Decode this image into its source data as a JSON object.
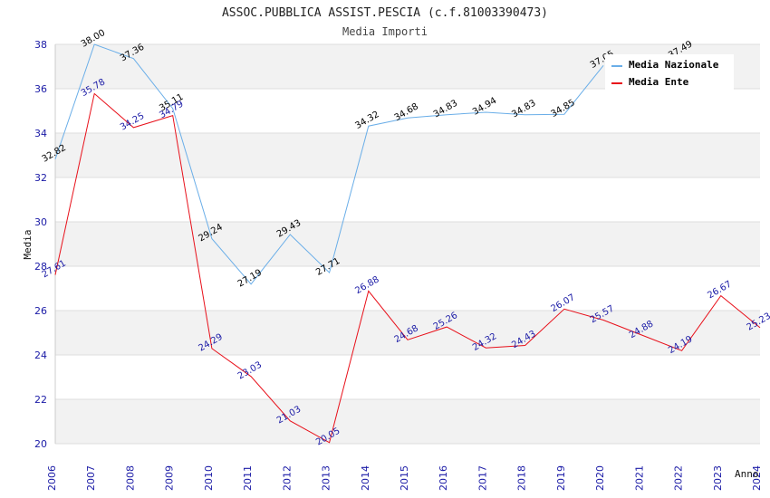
{
  "chart_data": {
    "type": "line",
    "title": "ASSOC.PUBBLICA ASSIST.PESCIA (c.f.81003390473)",
    "subtitle": "Media Importi",
    "xlabel": "Anno",
    "ylabel": "Media",
    "ylim": [
      20,
      38
    ],
    "yticks": [
      "20",
      "22",
      "24",
      "26",
      "28",
      "30",
      "32",
      "34",
      "36",
      "38"
    ],
    "x": [
      "2006",
      "2007",
      "2008",
      "2009",
      "2010",
      "2011",
      "2012",
      "2013",
      "2014",
      "2015",
      "2016",
      "2017",
      "2018",
      "2019",
      "2020",
      "2021",
      "2022",
      "2023",
      "2024"
    ],
    "legend_position": "top-right",
    "series": [
      {
        "name": "Media Nazionale",
        "color": "#6aaee8",
        "values": [
          32.82,
          38.0,
          37.36,
          35.11,
          29.24,
          27.19,
          29.43,
          27.71,
          34.32,
          34.68,
          34.83,
          34.94,
          34.83,
          34.85,
          37.05,
          null,
          37.49,
          null,
          null
        ],
        "labels": [
          "32.82",
          "38.00",
          "37.36",
          "35.11",
          "29.24",
          "27.19",
          "29.43",
          "27.71",
          "34.32",
          "34.68",
          "34.83",
          "34.94",
          "34.83",
          "34.85",
          "37.05",
          null,
          "37.49",
          null,
          null
        ]
      },
      {
        "name": "Media Ente",
        "color": "#e8101a",
        "values": [
          27.61,
          35.78,
          34.25,
          34.79,
          24.29,
          23.03,
          21.03,
          20.05,
          26.88,
          24.68,
          25.26,
          24.32,
          24.43,
          26.07,
          25.57,
          24.88,
          24.19,
          26.67,
          25.23
        ],
        "labels": [
          "27.61",
          "35.78",
          "34.25",
          "34.79",
          "24.29",
          "23.03",
          "21.03",
          "20.05",
          "26.88",
          "24.68",
          "25.26",
          "24.32",
          "24.43",
          "26.07",
          "25.57",
          "24.88",
          "24.19",
          "26.67",
          "25.23"
        ]
      }
    ]
  }
}
